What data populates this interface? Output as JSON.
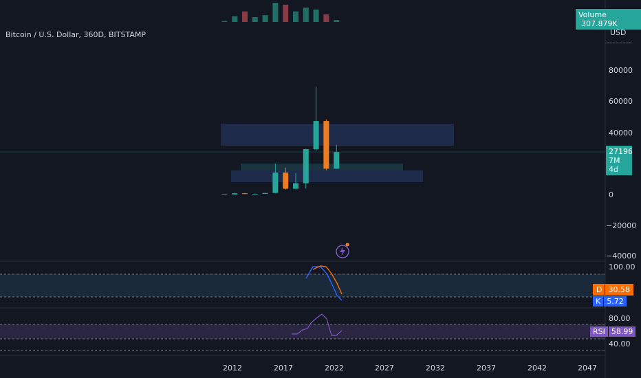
{
  "symbol": {
    "title": "Bitcoin / U.S. Dollar, 360D, BITSTAMP"
  },
  "volume": {
    "label": "Volume",
    "value": "307.879K"
  },
  "price_axis": {
    "currency": "USD",
    "ticks": [
      "80000",
      "60000",
      "40000",
      "20000",
      "0",
      "−20000",
      "−40000"
    ]
  },
  "last_price": {
    "value": "27196",
    "countdown": "7M 4d"
  },
  "stoch": {
    "ticks": [
      "100.00"
    ],
    "d_label": "D",
    "d_value": "30.58",
    "k_label": "K",
    "k_value": "5.72"
  },
  "rsi": {
    "ticks": [
      "80.00",
      "40.00"
    ],
    "label": "RSI",
    "value": "58.99"
  },
  "time_axis": {
    "ticks": [
      "2012",
      "2017",
      "2022",
      "2027",
      "2032",
      "2037",
      "2042",
      "2047"
    ]
  },
  "colors": {
    "up": "#26a69a",
    "down": "#ef7c1e",
    "bg": "#131722",
    "zone": "#1e2a4a",
    "d_line": "#ff6d00",
    "k_line": "#2962ff",
    "rsi_line": "#7e57c2"
  },
  "icons": {
    "alert": "lightning-icon"
  },
  "chart_data": {
    "type": "candlestick",
    "x": [
      "2012",
      "2013",
      "2014",
      "2015",
      "2016",
      "2017",
      "2018",
      "2019",
      "2020",
      "2021",
      "2022",
      "2023"
    ],
    "open": [
      5,
      13,
      800,
      320,
      430,
      1000,
      14000,
      3700,
      7200,
      29000,
      47000,
      16500
    ],
    "high": [
      16,
      1200,
      1000,
      500,
      1000,
      19700,
      17200,
      13800,
      29300,
      69000,
      48000,
      31800
    ],
    "low": [
      4,
      13,
      300,
      150,
      360,
      750,
      3100,
      3300,
      3800,
      28000,
      15500,
      16400
    ],
    "close": [
      13,
      800,
      320,
      430,
      1000,
      14000,
      3700,
      7200,
      29000,
      47000,
      16500,
      27196
    ]
  }
}
